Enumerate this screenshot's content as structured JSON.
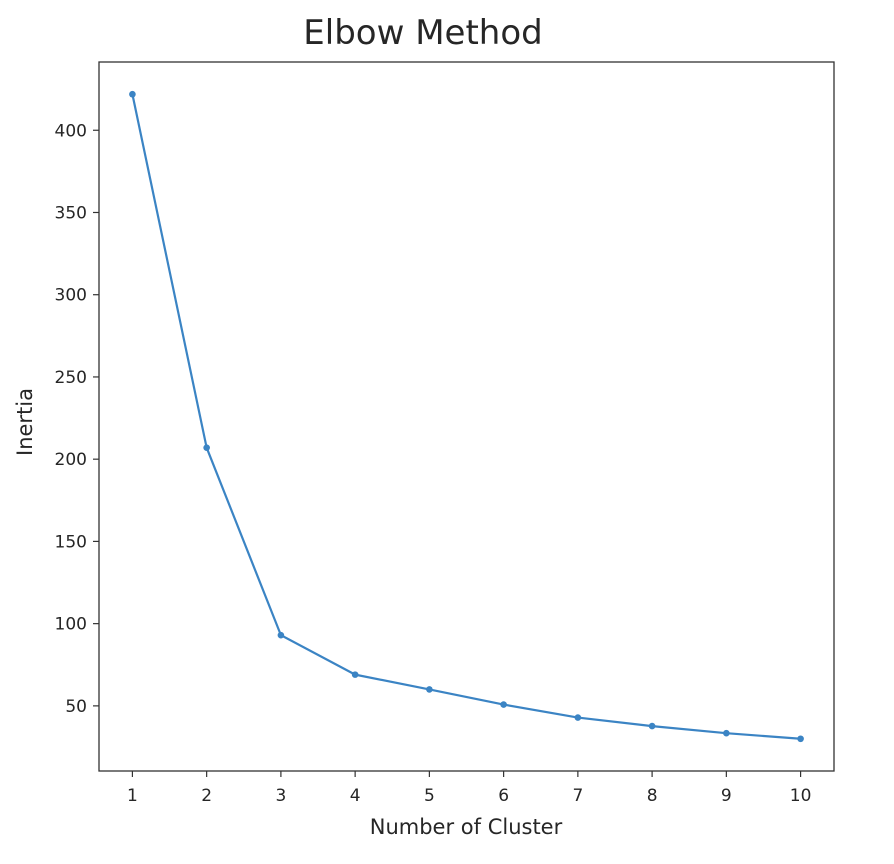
{
  "chart_data": {
    "type": "line",
    "title": "Elbow Method",
    "xlabel": "Number of Cluster",
    "ylabel": "Inertia",
    "x": [
      1,
      2,
      3,
      4,
      5,
      6,
      7,
      8,
      9,
      10
    ],
    "series": [
      {
        "values": [
          421.9,
          207.0,
          93.0,
          69.0,
          60.0,
          50.8,
          42.9,
          37.7,
          33.4,
          30.0
        ]
      }
    ],
    "xticks": [
      1,
      2,
      3,
      4,
      5,
      6,
      7,
      8,
      9,
      10
    ],
    "yticks": [
      50,
      100,
      150,
      200,
      250,
      300,
      350,
      400
    ],
    "xlim": [
      0.55,
      10.45
    ],
    "ylim": [
      10.4,
      441.5
    ],
    "grid": false,
    "line_color": "#3b84c4",
    "marker": "dot"
  }
}
